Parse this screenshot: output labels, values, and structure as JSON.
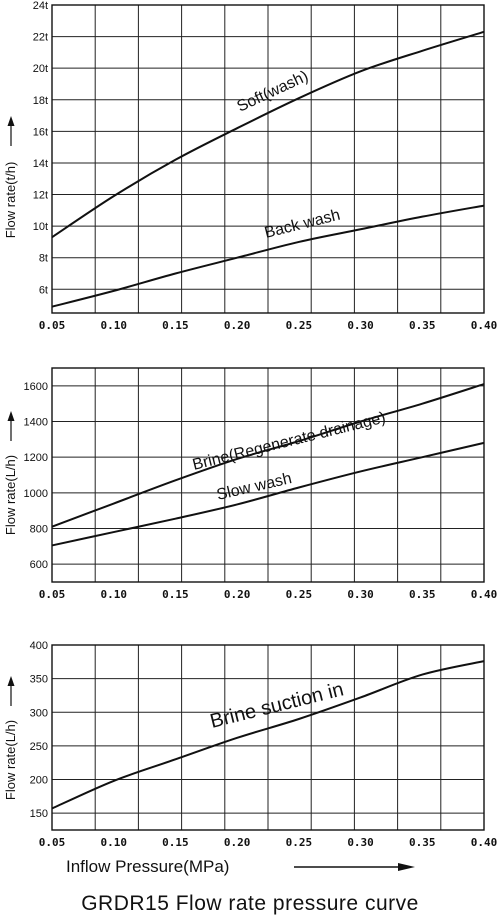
{
  "title": "GRDR15 Flow rate pressure curve",
  "x_axis_title": "Inflow Pressure(MPa)",
  "chart_data": [
    {
      "type": "line",
      "ylabel": "Flow rate(t/h)",
      "ylim": [
        4.5,
        24
      ],
      "xlim": [
        0.05,
        0.4
      ],
      "grid": true,
      "x_ticks": [
        "0.05",
        "0.10",
        "0.15",
        "0.20",
        "0.25",
        "0.30",
        "0.35",
        "0.40"
      ],
      "y_ticks": [
        {
          "value": 6,
          "label": "6t"
        },
        {
          "value": 8,
          "label": "8t"
        },
        {
          "value": 10,
          "label": "10t"
        },
        {
          "value": 12,
          "label": "12t"
        },
        {
          "value": 14,
          "label": "14t"
        },
        {
          "value": 16,
          "label": "16t"
        },
        {
          "value": 18,
          "label": "18t"
        },
        {
          "value": 20,
          "label": "20t"
        },
        {
          "value": 22,
          "label": "22t"
        },
        {
          "value": 24,
          "label": "24t"
        }
      ],
      "series": [
        {
          "name": "Soft(wash)",
          "x": [
            0.05,
            0.1,
            0.15,
            0.2,
            0.25,
            0.3,
            0.35,
            0.4
          ],
          "y": [
            9.3,
            11.9,
            14.2,
            16.2,
            18.1,
            19.8,
            21.1,
            22.3
          ]
        },
        {
          "name": "Back wash",
          "x": [
            0.05,
            0.1,
            0.15,
            0.2,
            0.25,
            0.3,
            0.35,
            0.4
          ],
          "y": [
            4.9,
            5.9,
            7.0,
            8.0,
            9.0,
            9.8,
            10.6,
            11.3
          ]
        }
      ]
    },
    {
      "type": "line",
      "ylabel": "Flow rate(L/h)",
      "ylim": [
        500,
        1700
      ],
      "xlim": [
        0.05,
        0.4
      ],
      "grid": true,
      "x_ticks": [
        "0.05",
        "0.10",
        "0.15",
        "0.20",
        "0.25",
        "0.30",
        "0.35",
        "0.40"
      ],
      "y_ticks": [
        {
          "value": 600,
          "label": "600"
        },
        {
          "value": 800,
          "label": "800"
        },
        {
          "value": 1000,
          "label": "1000"
        },
        {
          "value": 1200,
          "label": "1200"
        },
        {
          "value": 1400,
          "label": "1400"
        },
        {
          "value": 1600,
          "label": "1600"
        }
      ],
      "series": [
        {
          "name": "Brine(Regenerate drainage)",
          "x": [
            0.05,
            0.1,
            0.15,
            0.2,
            0.25,
            0.3,
            0.35,
            0.4
          ],
          "y": [
            810,
            940,
            1070,
            1190,
            1290,
            1400,
            1500,
            1610
          ]
        },
        {
          "name": "Slow wash",
          "x": [
            0.05,
            0.1,
            0.15,
            0.2,
            0.25,
            0.3,
            0.35,
            0.4
          ],
          "y": [
            705,
            780,
            855,
            935,
            1030,
            1120,
            1200,
            1280
          ]
        }
      ]
    },
    {
      "type": "line",
      "ylabel": "Flow rate(L/h)",
      "ylim": [
        125,
        400
      ],
      "xlim": [
        0.05,
        0.4
      ],
      "grid": true,
      "x_ticks": [
        "0.05",
        "0.10",
        "0.15",
        "0.20",
        "0.25",
        "0.30",
        "0.35",
        "0.40"
      ],
      "y_ticks": [
        {
          "value": 150,
          "label": "150"
        },
        {
          "value": 200,
          "label": "200"
        },
        {
          "value": 250,
          "label": "250"
        },
        {
          "value": 300,
          "label": "300"
        },
        {
          "value": 350,
          "label": "350"
        },
        {
          "value": 400,
          "label": "400"
        }
      ],
      "series": [
        {
          "name": "Brine suction in",
          "x": [
            0.05,
            0.1,
            0.15,
            0.2,
            0.25,
            0.3,
            0.35,
            0.4
          ],
          "y": [
            157,
            198,
            230,
            262,
            290,
            322,
            356,
            376
          ]
        }
      ]
    }
  ]
}
